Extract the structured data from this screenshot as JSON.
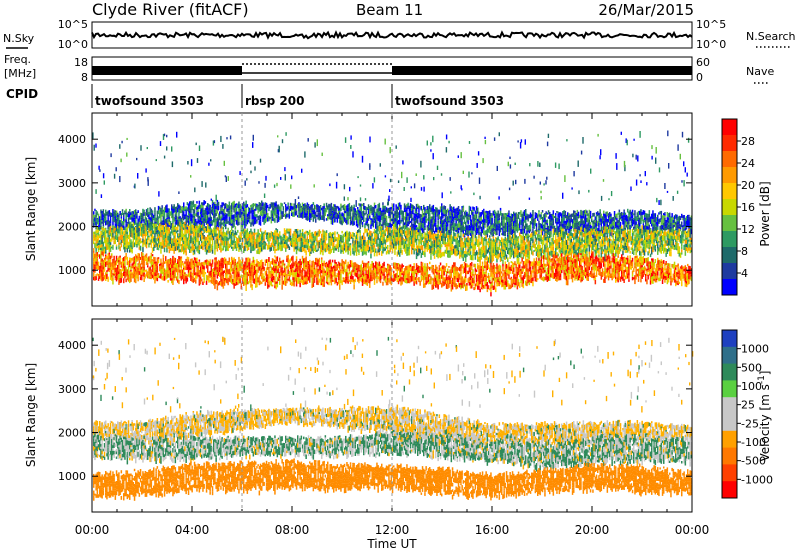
{
  "header": {
    "station": "Clyde River (fitACF)",
    "beam": "Beam 11",
    "date": "26/Mar/2015"
  },
  "noise_panel": {
    "left_label": "N.Sky",
    "right_label": "N.Search",
    "left_ticks": [
      "10^5",
      "10^0"
    ],
    "right_ticks": [
      "10^5",
      "10^0"
    ]
  },
  "freq_panel": {
    "left_label_top": "Freq.",
    "left_label_bottom": "[MHz]",
    "right_label": "Nave",
    "left_ticks": [
      "18",
      "8"
    ],
    "right_ticks": [
      "60",
      "0"
    ]
  },
  "cpid_panel": {
    "label": "CPID",
    "segments": [
      {
        "name": "twofsound 3503",
        "start_hour": 0,
        "end_hour": 6
      },
      {
        "name": "rbsp 200",
        "start_hour": 6,
        "end_hour": 12
      },
      {
        "name": "twofsound 3503",
        "start_hour": 12,
        "end_hour": 24
      }
    ]
  },
  "power_colorbar": {
    "label": "Power [dB]",
    "ticks": [
      "28",
      "24",
      "20",
      "16",
      "12",
      "8",
      "4"
    ],
    "colors": [
      "#ff0000",
      "#ff2a00",
      "#ff6a00",
      "#ff9a00",
      "#ffc800",
      "#c8d800",
      "#66c040",
      "#2e9a62",
      "#1e6a6a",
      "#1e3aa0",
      "#0000ff"
    ]
  },
  "velocity_colorbar": {
    "label": "Velocity [m s",
    "label_sup": "-1",
    "label_close": "]",
    "ticks": [
      "1000",
      "500",
      "100",
      "25",
      "-25",
      "-100",
      "-500",
      "-1000"
    ],
    "colors": [
      "#1e40c0",
      "#2f6f8a",
      "#2e8a5a",
      "#5ad040",
      "#c8c8c8",
      "#c8c8c8",
      "#ffa000",
      "#ff7800",
      "#ff4000",
      "#ff0000"
    ]
  },
  "chart_data": {
    "type": "heatmap",
    "xlabel": "Time UT",
    "x_ticks": [
      "00:00",
      "04:00",
      "08:00",
      "12:00",
      "16:00",
      "20:00",
      "00:00"
    ],
    "xlim_hours": [
      0,
      24
    ],
    "ylabel": "Slant Range [km]",
    "y_ticks": [
      1000,
      2000,
      3000,
      4000
    ],
    "ylim_km": [
      180,
      4600
    ],
    "panels": [
      {
        "name": "power",
        "layers": [
          {
            "hours": [
              0,
              2,
              4,
              6,
              8,
              10,
              12,
              14,
              16,
              18,
              20,
              22,
              24
            ],
            "center_km": [
              2200,
              2150,
              2250,
              2300,
              2400,
              2300,
              2200,
              2150,
              2100,
              2100,
              2100,
              2150,
              2050
            ],
            "half_km": [
              180,
              220,
              300,
              260,
              150,
              200,
              300,
              320,
              280,
              240,
              250,
              220,
              180
            ],
            "value_db": 8
          },
          {
            "hours": [
              0,
              2,
              4,
              6,
              8,
              10,
              12,
              14,
              16,
              18,
              20,
              22,
              24
            ],
            "center_km": [
              1700,
              1800,
              1750,
              1700,
              1700,
              1650,
              1700,
              1600,
              1500,
              1600,
              1650,
              1700,
              1650
            ],
            "half_km": [
              250,
              280,
              300,
              220,
              220,
              220,
              300,
              260,
              250,
              280,
              300,
              280,
              250
            ],
            "value_db": 16
          },
          {
            "hours": [
              0,
              1,
              2,
              3,
              4,
              6,
              8,
              10,
              12,
              14,
              16,
              18,
              20,
              22,
              24
            ],
            "center_km": [
              1100,
              1050,
              1100,
              1050,
              1000,
              950,
              1000,
              950,
              950,
              900,
              850,
              1050,
              1100,
              1050,
              900
            ],
            "half_km": [
              300,
              280,
              280,
              250,
              250,
              300,
              300,
              250,
              200,
              250,
              300,
              260,
              280,
              250,
              200
            ],
            "value_db": 24
          }
        ]
      },
      {
        "name": "velocity",
        "layers": [
          {
            "hours": [
              0,
              2,
              4,
              6,
              8,
              10,
              12,
              14,
              16,
              18,
              20,
              22,
              24
            ],
            "center_km": [
              2100,
              2050,
              2200,
              2300,
              2400,
              2350,
              2300,
              2100,
              2000,
              2000,
              2000,
              2050,
              2000
            ],
            "half_km": [
              150,
              200,
              250,
              220,
              150,
              200,
              300,
              300,
              200,
              220,
              250,
              200,
              150
            ],
            "value_ms": -25
          },
          {
            "hours": [
              0,
              2,
              4,
              6,
              8,
              10,
              12,
              14,
              16,
              18,
              20,
              22,
              24
            ],
            "center_km": [
              1700,
              1650,
              1650,
              1700,
              1700,
              1700,
              1800,
              1700,
              1600,
              1500,
              1600,
              1650,
              1600
            ],
            "half_km": [
              250,
              250,
              250,
              200,
              200,
              200,
              250,
              250,
              250,
              280,
              300,
              280,
              250
            ],
            "value_ms": 25
          },
          {
            "hours": [
              0,
              2,
              4,
              6,
              8,
              10,
              12,
              14,
              16,
              18,
              20,
              22,
              24
            ],
            "center_km": [
              800,
              850,
              1000,
              1000,
              1050,
              1000,
              1000,
              900,
              800,
              900,
              1000,
              950,
              850
            ],
            "half_km": [
              250,
              280,
              300,
              300,
              300,
              280,
              250,
              280,
              250,
              250,
              280,
              280,
              250
            ],
            "value_ms": -300
          }
        ]
      }
    ]
  }
}
